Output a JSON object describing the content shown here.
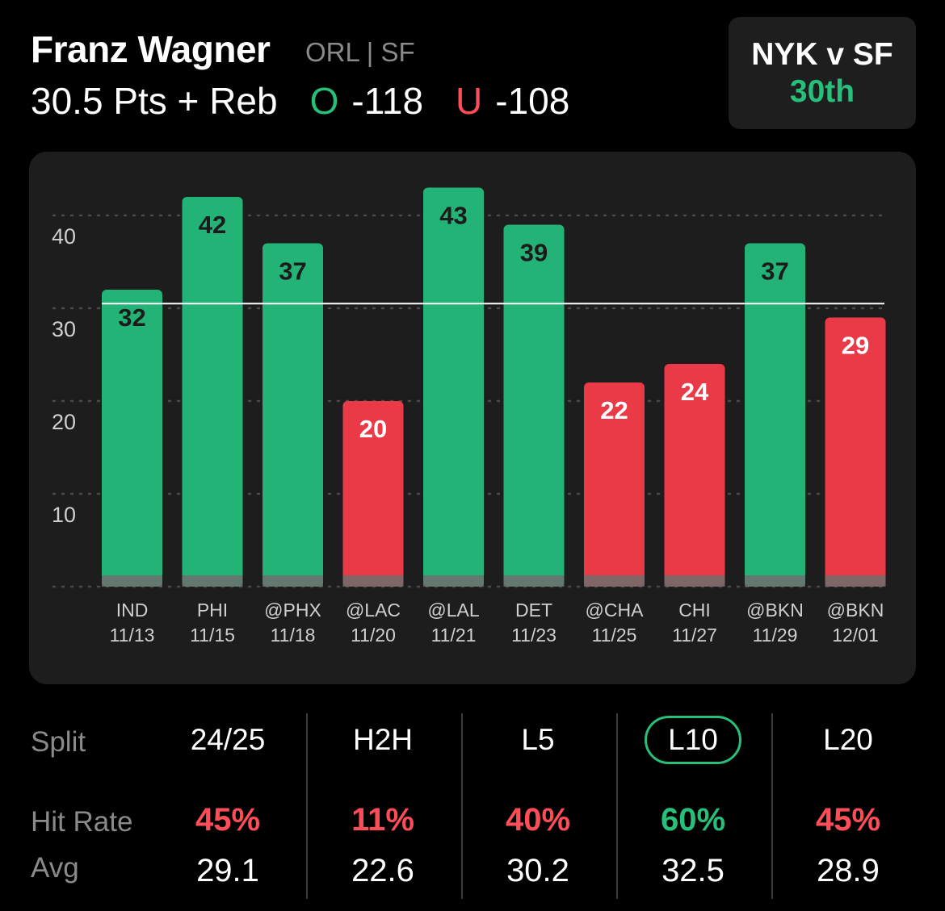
{
  "header": {
    "player_name": "Franz Wagner",
    "team_position": "ORL | SF",
    "stat_line": "30.5 Pts + Reb",
    "over_mark": "O",
    "over_odds": "-118",
    "under_mark": "U",
    "under_odds": "-108"
  },
  "matchup": {
    "label": "NYK v SF",
    "rank": "30th"
  },
  "colors": {
    "over": "#27c07a",
    "under": "#ff4d57",
    "bar_over": "#23b377",
    "bar_under": "#ea3a48"
  },
  "chart_data": {
    "type": "bar",
    "categories": [
      "IND 11/13",
      "PHI 11/15",
      "@PHX 11/18",
      "@LAC 11/20",
      "@LAL 11/21",
      "DET 11/23",
      "@CHA 11/25",
      "CHI 11/27",
      "@BKN 11/29",
      "@BKN 12/01"
    ],
    "opponents": [
      "IND",
      "PHI",
      "@PHX",
      "@LAC",
      "@LAL",
      "DET",
      "@CHA",
      "CHI",
      "@BKN",
      "@BKN"
    ],
    "dates": [
      "11/13",
      "11/15",
      "11/18",
      "11/20",
      "11/21",
      "11/23",
      "11/25",
      "11/27",
      "11/29",
      "12/01"
    ],
    "values": [
      32,
      42,
      37,
      20,
      43,
      39,
      22,
      24,
      37,
      29
    ],
    "threshold": 30.5,
    "ylim": [
      0,
      45
    ],
    "yticks": [
      10,
      20,
      30,
      40
    ],
    "grid": true,
    "title": "",
    "xlabel": "",
    "ylabel": ""
  },
  "splits": {
    "split_label": "Split",
    "hit_rate_label": "Hit Rate",
    "avg_label": "Avg",
    "selected": "L10",
    "columns": [
      {
        "name": "24/25",
        "hit_rate": "45%",
        "hit_color": "#ff4d57",
        "avg": "29.1"
      },
      {
        "name": "H2H",
        "hit_rate": "11%",
        "hit_color": "#ff4d57",
        "avg": "22.6"
      },
      {
        "name": "L5",
        "hit_rate": "40%",
        "hit_color": "#ff4d57",
        "avg": "30.2"
      },
      {
        "name": "L10",
        "hit_rate": "60%",
        "hit_color": "#27c07a",
        "avg": "32.5"
      },
      {
        "name": "L20",
        "hit_rate": "45%",
        "hit_color": "#ff4d57",
        "avg": "28.9"
      }
    ]
  }
}
